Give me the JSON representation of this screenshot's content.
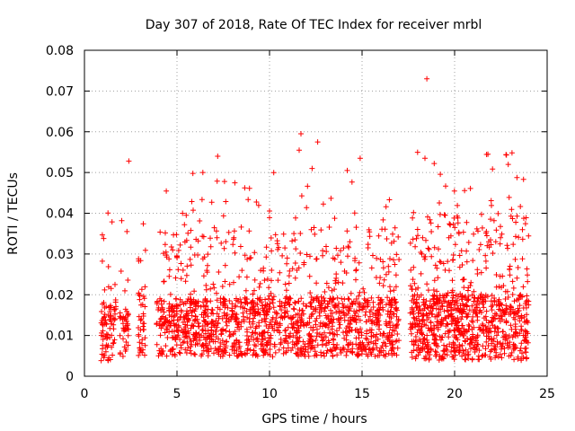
{
  "chart_data": {
    "type": "scatter",
    "title": "Day 307 of 2018, Rate Of TEC Index for receiver mrbl",
    "xlabel": "GPS time / hours",
    "ylabel": "ROTI / TECUs",
    "xlim": [
      0,
      25
    ],
    "ylim": [
      0,
      0.08
    ],
    "xticks": [
      0,
      5,
      10,
      15,
      20,
      25
    ],
    "xtick_labels": [
      "0",
      "5",
      "10",
      "15",
      "20",
      "25"
    ],
    "yticks": [
      0,
      0.01,
      0.02,
      0.03,
      0.04,
      0.05,
      0.06,
      0.07,
      0.08
    ],
    "ytick_labels": [
      "0",
      "0.01",
      "0.02",
      "0.03",
      "0.04",
      "0.05",
      "0.06",
      "0.07",
      "0.08"
    ],
    "grid": true,
    "marker": "+",
    "marker_color": "#ff0000",
    "segments": [
      {
        "t_start": 0.9,
        "t_end": 1.7,
        "n": 90,
        "base": 0.011,
        "spread": 0.008,
        "max": 0.043
      },
      {
        "t_start": 1.9,
        "t_end": 2.4,
        "n": 45,
        "base": 0.011,
        "spread": 0.007,
        "max": 0.04
      },
      {
        "t_start": 2.9,
        "t_end": 3.3,
        "n": 45,
        "base": 0.013,
        "spread": 0.009,
        "max": 0.041
      },
      {
        "t_start": 3.9,
        "t_end": 17.0,
        "n": 1500,
        "base": 0.012,
        "spread": 0.008,
        "max": 0.05
      },
      {
        "t_start": 17.6,
        "t_end": 24.0,
        "n": 900,
        "base": 0.012,
        "spread": 0.009,
        "max": 0.055
      }
    ],
    "notable_points": [
      {
        "x": 18.5,
        "y": 0.073
      },
      {
        "x": 11.7,
        "y": 0.0595
      },
      {
        "x": 12.6,
        "y": 0.0575
      },
      {
        "x": 11.6,
        "y": 0.0555
      },
      {
        "x": 23.1,
        "y": 0.0548
      },
      {
        "x": 21.8,
        "y": 0.0545
      },
      {
        "x": 22.8,
        "y": 0.0543
      },
      {
        "x": 7.2,
        "y": 0.054
      },
      {
        "x": 18.4,
        "y": 0.0535
      },
      {
        "x": 14.9,
        "y": 0.0535
      },
      {
        "x": 2.4,
        "y": 0.0528
      },
      {
        "x": 18.9,
        "y": 0.0522
      },
      {
        "x": 14.2,
        "y": 0.0505
      },
      {
        "x": 6.4,
        "y": 0.05
      },
      {
        "x": 12.3,
        "y": 0.051
      },
      {
        "x": 22.9,
        "y": 0.052
      }
    ]
  }
}
